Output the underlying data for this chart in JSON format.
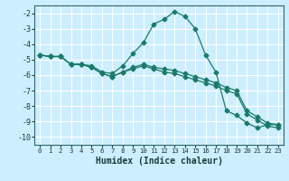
{
  "xlabel": "Humidex (Indice chaleur)",
  "bg_color": "#cceeff",
  "grid_color": "#ffffff",
  "line_color": "#1a7a6a",
  "xlim": [
    -0.5,
    23.5
  ],
  "ylim": [
    -10.5,
    -1.5
  ],
  "yticks": [
    -10,
    -9,
    -8,
    -7,
    -6,
    -5,
    -4,
    -3,
    -2
  ],
  "xticks": [
    0,
    1,
    2,
    3,
    4,
    5,
    6,
    7,
    8,
    9,
    10,
    11,
    12,
    13,
    14,
    15,
    16,
    17,
    18,
    19,
    20,
    21,
    22,
    23
  ],
  "curve1_x": [
    0,
    1,
    2,
    3,
    4,
    5,
    6,
    7,
    8,
    9,
    10,
    11,
    12,
    13,
    14,
    15,
    16,
    17,
    18,
    19,
    20,
    21,
    22,
    23
  ],
  "curve1_y": [
    -4.7,
    -4.8,
    -4.8,
    -5.3,
    -5.3,
    -5.4,
    -5.8,
    -5.9,
    -5.4,
    -4.6,
    -3.9,
    -2.7,
    -2.4,
    -1.9,
    -2.2,
    -3.0,
    -4.7,
    -5.8,
    -8.3,
    -8.6,
    -9.1,
    -9.4,
    -9.2,
    -9.2
  ],
  "curve2_x": [
    0,
    1,
    2,
    3,
    4,
    5,
    6,
    7,
    8,
    9,
    10,
    11,
    12,
    13,
    14,
    15,
    16,
    17,
    18,
    19,
    20,
    21,
    22,
    23
  ],
  "curve2_y": [
    -4.7,
    -4.8,
    -4.8,
    -5.3,
    -5.3,
    -5.5,
    -5.9,
    -6.1,
    -5.8,
    -5.5,
    -5.3,
    -5.5,
    -5.6,
    -5.7,
    -5.9,
    -6.1,
    -6.3,
    -6.5,
    -6.8,
    -7.0,
    -8.3,
    -8.7,
    -9.1,
    -9.2
  ],
  "curve3_x": [
    0,
    1,
    2,
    3,
    4,
    5,
    6,
    7,
    8,
    9,
    10,
    11,
    12,
    13,
    14,
    15,
    16,
    17,
    18,
    19,
    20,
    21,
    22,
    23
  ],
  "curve3_y": [
    -4.7,
    -4.8,
    -4.8,
    -5.3,
    -5.3,
    -5.5,
    -5.9,
    -6.1,
    -5.8,
    -5.6,
    -5.4,
    -5.6,
    -5.8,
    -5.9,
    -6.1,
    -6.3,
    -6.5,
    -6.7,
    -7.0,
    -7.2,
    -8.5,
    -8.9,
    -9.3,
    -9.4
  ]
}
